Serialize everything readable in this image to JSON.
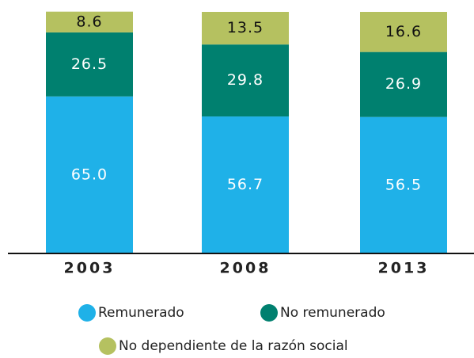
{
  "chart_data": {
    "type": "stacked_bar",
    "categories": [
      "2003",
      "2008",
      "2013"
    ],
    "series": [
      {
        "name": "Remunerado",
        "color": "#1fb1e8",
        "values": [
          65.0,
          56.7,
          56.5
        ],
        "value_labels": [
          "65.0",
          "56.7",
          "56.5"
        ]
      },
      {
        "name": "No remunerado",
        "color": "#00806f",
        "values": [
          26.5,
          29.8,
          26.9
        ],
        "value_labels": [
          "26.5",
          "29.8",
          "26.9"
        ]
      },
      {
        "name": "No dependiente de la razón social",
        "color": "#b5c160",
        "values": [
          8.6,
          13.5,
          16.6
        ],
        "value_labels": [
          "8.6",
          "13.5",
          "16.6"
        ]
      }
    ],
    "ylim": [
      0,
      100
    ]
  }
}
